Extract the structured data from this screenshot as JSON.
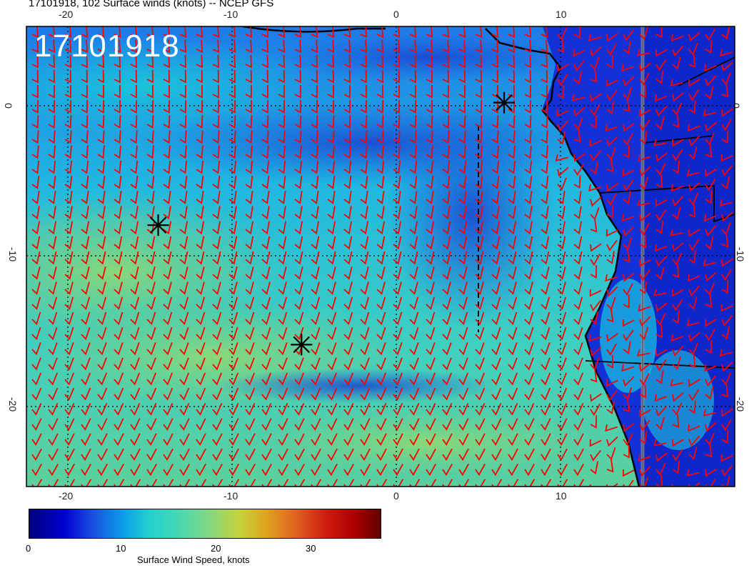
{
  "title": "17101918, 102 Surface winds (knots) -- NCEP GFS",
  "stamp": "17101918",
  "lon_ticks": [
    "-20",
    "-10",
    "0",
    "10"
  ],
  "lat_ticks": [
    "0",
    "-10",
    "-20"
  ],
  "colorbar": {
    "label": "Surface Wind Speed, knots",
    "ticks": [
      "0",
      "10",
      "20",
      "30"
    ],
    "range": [
      0,
      37
    ]
  },
  "colors": {
    "barb": "#ff0000",
    "coast": "#000000",
    "land": "#1232d8",
    "ocean_low": "#1a6ae8",
    "ocean_high": "#7ad88a"
  },
  "markers": [
    {
      "name": "marker-1",
      "lon": 6.5,
      "lat": 0.2
    },
    {
      "name": "marker-2",
      "lon": -14.5,
      "lat": -8.0
    },
    {
      "name": "marker-3",
      "lon": -5.8,
      "lat": -16.0
    }
  ],
  "map_extent": {
    "lon": [
      -22.5,
      20.5
    ],
    "lat": [
      -25.5,
      5.3
    ]
  }
}
